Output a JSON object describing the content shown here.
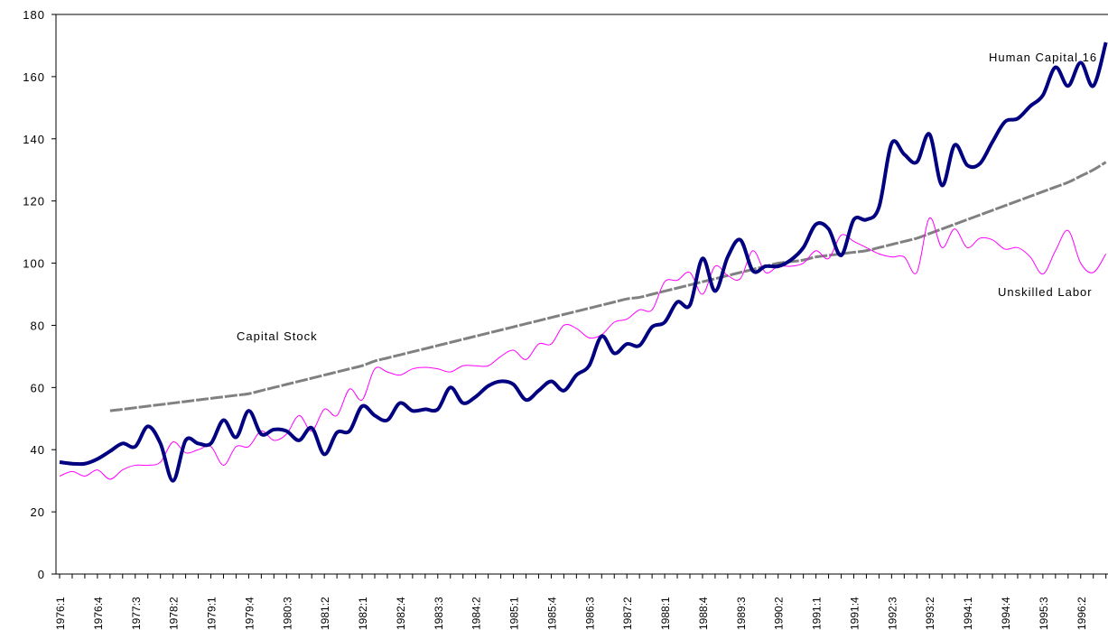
{
  "chart_data": {
    "type": "line",
    "categories": [
      "1976:1",
      null,
      null,
      "1976:4",
      null,
      null,
      "1977:3",
      null,
      null,
      "1978:2",
      null,
      null,
      "1979:1",
      null,
      null,
      "1979:4",
      null,
      null,
      "1980:3",
      null,
      null,
      "1981:2",
      null,
      null,
      "1982:1",
      null,
      null,
      "1982:4",
      null,
      null,
      "1983:3",
      null,
      null,
      "1984:2",
      null,
      null,
      "1985:1",
      null,
      null,
      "1985:4",
      null,
      null,
      "1986:3",
      null,
      null,
      "1987:2",
      null,
      null,
      "1988:1",
      null,
      null,
      "1988:4",
      null,
      null,
      "1989:3",
      null,
      null,
      "1990:2",
      null,
      null,
      "1991:1",
      null,
      null,
      "1991:4",
      null,
      null,
      "1992:3",
      null,
      null,
      "1993:2",
      null,
      null,
      "1994:1",
      null,
      null,
      "1994:4",
      null,
      null,
      "1995:3",
      null,
      null,
      "1996:2",
      null,
      null
    ],
    "series": [
      {
        "name": "Human Capital 16",
        "color": "#000080",
        "values": [
          36,
          35.5,
          35.5,
          37,
          39.5,
          42,
          41,
          47.5,
          42,
          30,
          43,
          42,
          42,
          49.5,
          44,
          52.5,
          45,
          46.5,
          46,
          43,
          47,
          38.5,
          45.5,
          46,
          54,
          51,
          49.5,
          55,
          52.5,
          53,
          53,
          60,
          55,
          57,
          60.5,
          62,
          61,
          56,
          59,
          62,
          59,
          64,
          67,
          76.5,
          71,
          74,
          73.5,
          79.5,
          81,
          87.5,
          86.5,
          101.5,
          91,
          102,
          107.5,
          97.5,
          99,
          99,
          101,
          105,
          112.5,
          111,
          102.5,
          114,
          114,
          118,
          138.5,
          135,
          132.5,
          141.5,
          125,
          138,
          131.5,
          132,
          139,
          145.5,
          146.5,
          150.5,
          154,
          163,
          157,
          164.5,
          157,
          171
        ]
      },
      {
        "name": "Unskilled Labor",
        "color": "#ff00ff",
        "values": [
          31.5,
          33,
          31.5,
          33.5,
          30.5,
          33.5,
          35,
          35,
          36,
          42.5,
          39,
          40,
          41,
          35,
          41,
          41,
          46,
          43,
          45,
          51,
          46,
          53,
          51,
          59.5,
          56,
          66,
          65,
          64,
          66,
          66.5,
          66,
          65,
          67,
          67,
          67,
          70,
          72,
          69,
          74,
          74,
          80,
          79,
          76,
          77,
          81,
          82,
          85,
          85,
          94,
          94.5,
          97,
          90,
          99,
          96,
          95,
          104,
          97,
          99,
          99,
          100,
          104,
          101.5,
          109,
          107,
          105,
          103,
          102,
          102,
          97,
          114.5,
          105,
          111,
          105,
          108,
          107.5,
          104.5,
          105,
          102,
          96.5,
          104,
          110.5,
          100,
          97,
          103
        ]
      },
      {
        "name": "Capital Stock",
        "color": "#808080",
        "values": [
          null,
          null,
          null,
          null,
          52.5,
          53,
          53.5,
          54,
          54.5,
          55,
          55.5,
          56,
          56.5,
          57,
          57.5,
          58,
          59,
          60,
          61,
          62,
          63,
          64,
          65,
          66,
          67,
          68.5,
          69.5,
          70.5,
          71.5,
          72.5,
          73.5,
          74.5,
          75.5,
          76.5,
          77.5,
          78.5,
          79.5,
          80.5,
          81.5,
          82.5,
          83.5,
          84.5,
          85.5,
          86.5,
          87.5,
          88.5,
          89,
          90,
          91,
          92,
          93,
          94,
          95,
          96,
          97,
          98,
          99,
          100,
          100.5,
          101,
          102,
          102.5,
          103,
          103.5,
          104,
          105,
          106,
          107,
          108,
          109.5,
          111,
          112.5,
          114,
          115.5,
          117,
          118.5,
          120,
          121.5,
          123,
          124.5,
          126,
          128,
          130,
          132.5
        ]
      }
    ],
    "ylim": [
      0,
      180
    ],
    "yticks": [
      0,
      20,
      40,
      60,
      80,
      100,
      120,
      140,
      160,
      180
    ]
  }
}
